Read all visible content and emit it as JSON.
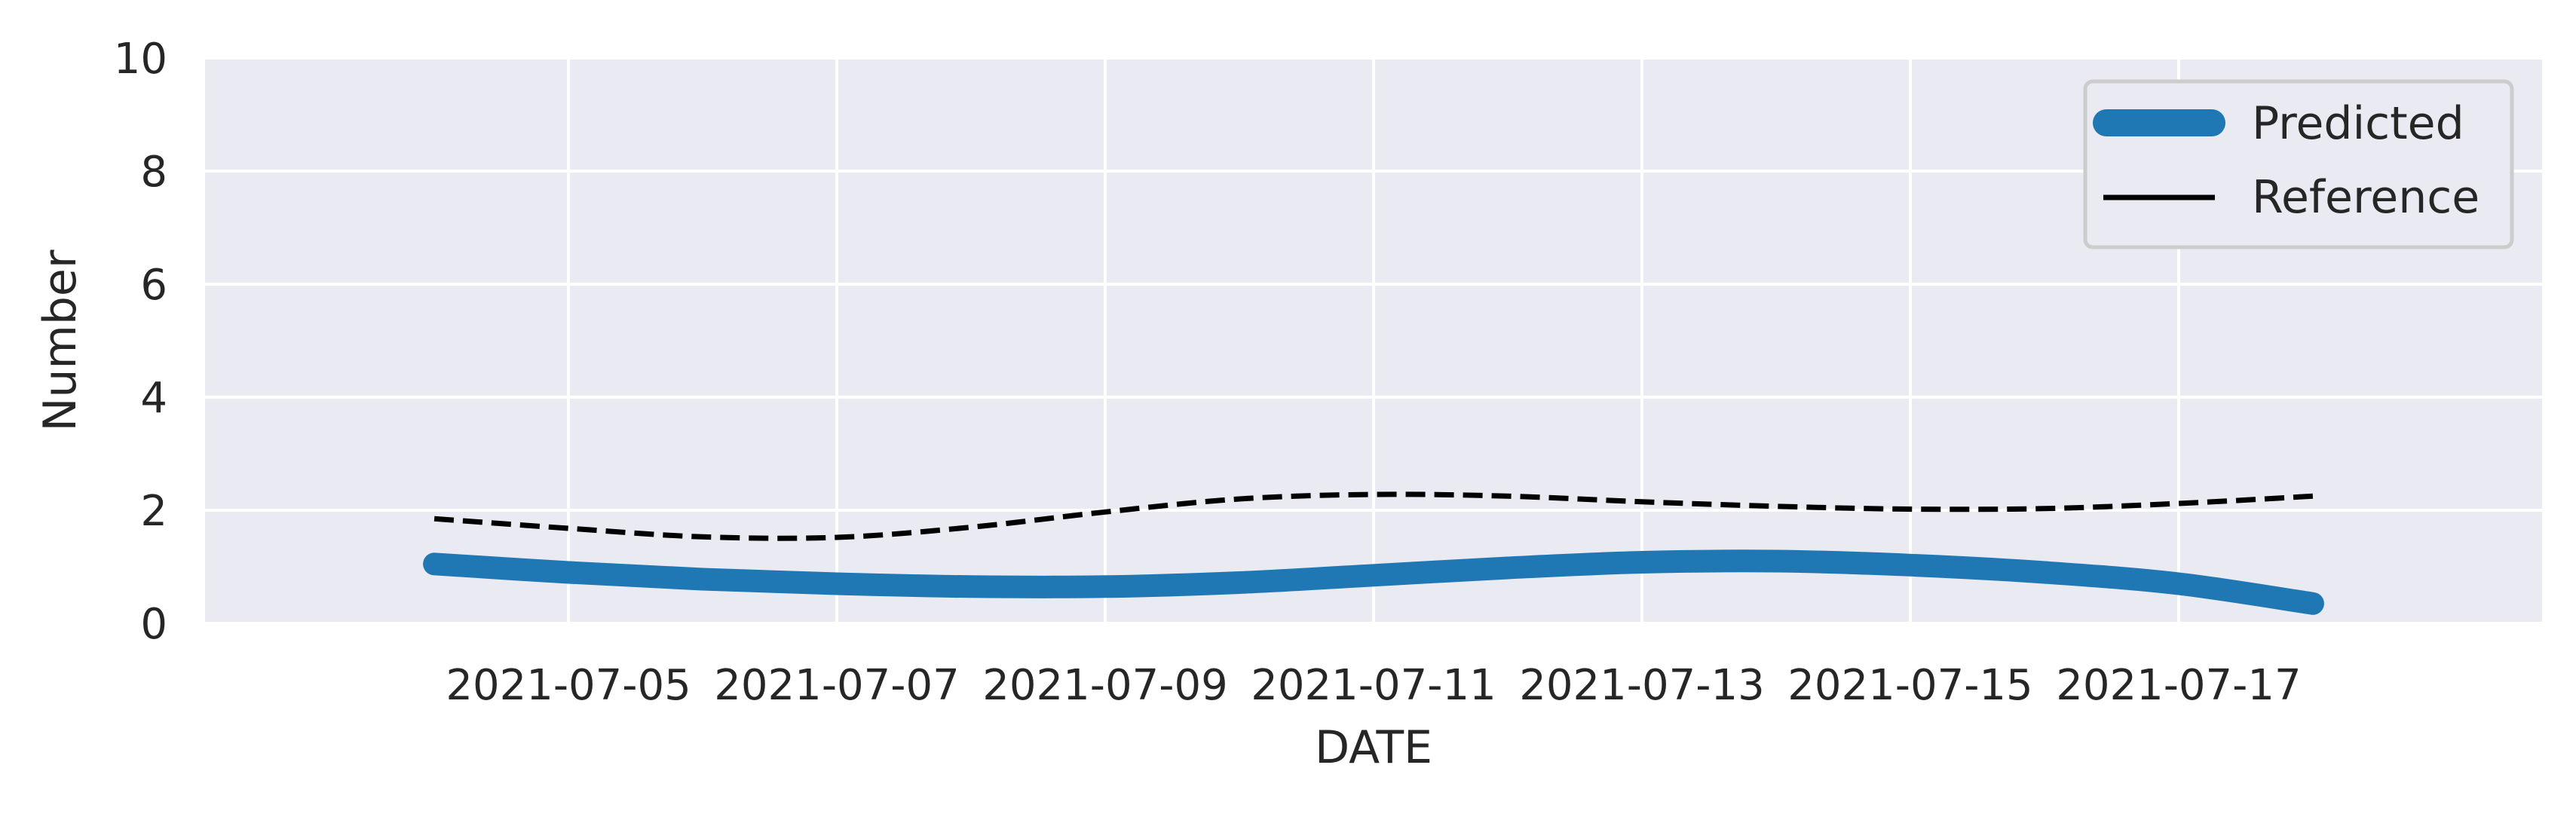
{
  "chart_data": {
    "type": "line",
    "title": "",
    "xlabel": "DATE",
    "ylabel": "Number",
    "xlim": [
      "2021-07-02T07:00",
      "2021-07-19T17:00"
    ],
    "ylim": [
      0,
      10
    ],
    "x_ticks": [
      "2021-07-05",
      "2021-07-07",
      "2021-07-09",
      "2021-07-11",
      "2021-07-13",
      "2021-07-15",
      "2021-07-17"
    ],
    "y_ticks": [
      "0",
      "2",
      "4",
      "6",
      "8",
      "10"
    ],
    "grid": true,
    "legend_position": "top-right",
    "x": [
      "2021-07-04",
      "2021-07-05",
      "2021-07-06",
      "2021-07-07",
      "2021-07-08",
      "2021-07-09",
      "2021-07-10",
      "2021-07-11",
      "2021-07-12",
      "2021-07-13",
      "2021-07-14",
      "2021-07-15",
      "2021-07-16",
      "2021-07-17",
      "2021-07-18"
    ],
    "series": [
      {
        "name": "Predicted",
        "color": "#1f77b4",
        "style": "solid-thick",
        "values": [
          1.05,
          0.9,
          0.78,
          0.7,
          0.65,
          0.65,
          0.72,
          0.85,
          0.98,
          1.08,
          1.1,
          1.03,
          0.9,
          0.7,
          0.35
        ]
      },
      {
        "name": "Reference",
        "color": "#000000",
        "style": "dashed",
        "values": [
          1.85,
          1.68,
          1.53,
          1.52,
          1.7,
          1.97,
          2.2,
          2.28,
          2.25,
          2.15,
          2.07,
          2.02,
          2.03,
          2.12,
          2.25
        ]
      }
    ],
    "colors": {
      "plot_background": "#eaeaf2",
      "grid": "#ffffff",
      "text": "#262626"
    }
  }
}
